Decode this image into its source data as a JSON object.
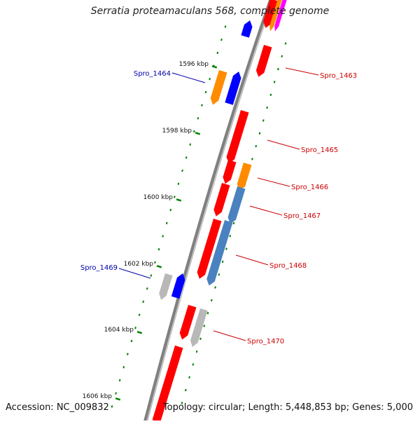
{
  "title": "Serratia proteamaculans 568, complete genome",
  "footer": {
    "accession": "Accession: NC_009832",
    "summary": "Topology: circular; Length: 5,448,853 bp; Genes: 5,000"
  },
  "colors": {
    "backbone": "#808080",
    "red": "#ff0000",
    "orange": "#ff8c00",
    "blue": "#0000ff",
    "steelblue": "#4a82c0",
    "gray": "#b8b8b8",
    "magenta": "#ff00ff",
    "tick_green": "#008000",
    "label_red": "#cc0000",
    "label_blue": "#0000aa"
  },
  "scale_labels": [
    "1596 kbp",
    "1598 kbp",
    "1600 kbp",
    "1602 kbp",
    "1604 kbp",
    "1606 kbp"
  ],
  "gene_labels": [
    "Spro_1463",
    "Spro_1464",
    "Spro_1465",
    "Spro_1466",
    "Spro_1467",
    "Spro_1468",
    "Spro_1469",
    "Spro_1470"
  ]
}
